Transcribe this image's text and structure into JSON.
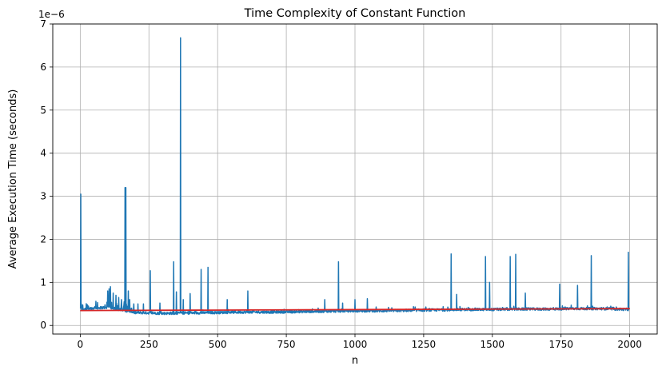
{
  "chart_data": {
    "type": "line",
    "title": "Time Complexity of Constant Function",
    "xlabel": "n",
    "ylabel": "Average Execution Time (seconds)",
    "y_offset_label": "1e−6",
    "xlim": [
      -100,
      2100
    ],
    "ylim": [
      -0.2,
      7
    ],
    "xticks": [
      0,
      250,
      500,
      750,
      1000,
      1250,
      1500,
      1750,
      2000
    ],
    "yticks": [
      0,
      1,
      2,
      3,
      4,
      5,
      6,
      7
    ],
    "grid": true,
    "legend": "none",
    "colors": {
      "measured": "#1f77b4",
      "fit": "#d62728"
    },
    "series": [
      {
        "color": "#1f77b4",
        "baseline": {
          "x": [
            1,
            100,
            200,
            300,
            400,
            500,
            600,
            700,
            800,
            900,
            1000,
            1100,
            1200,
            1300,
            1400,
            1500,
            1600,
            1700,
            1800,
            1900,
            2000
          ],
          "y": [
            0.38,
            0.42,
            0.3,
            0.28,
            0.29,
            0.3,
            0.31,
            0.31,
            0.32,
            0.33,
            0.34,
            0.34,
            0.35,
            0.36,
            0.37,
            0.37,
            0.38,
            0.38,
            0.39,
            0.39,
            0.37
          ]
        },
        "spikes": {
          "x": [
            2,
            4,
            100,
            105,
            110,
            120,
            130,
            140,
            150,
            160,
            163,
            166,
            175,
            180,
            195,
            210,
            230,
            255,
            290,
            340,
            350,
            365,
            375,
            400,
            440,
            465,
            535,
            610,
            890,
            940,
            955,
            1000,
            1045,
            1350,
            1370,
            1475,
            1490,
            1565,
            1585,
            1620,
            1745,
            1810,
            1860,
            1995
          ],
          "y": [
            3.05,
            0.5,
            0.8,
            0.85,
            0.9,
            0.75,
            0.7,
            0.65,
            0.6,
            0.55,
            3.2,
            3.2,
            0.8,
            0.6,
            0.5,
            0.5,
            0.5,
            1.27,
            0.52,
            1.48,
            0.78,
            6.68,
            0.6,
            0.74,
            1.3,
            1.35,
            0.6,
            0.8,
            0.6,
            1.48,
            0.52,
            0.6,
            0.62,
            1.66,
            0.72,
            1.6,
            1.0,
            1.6,
            1.65,
            0.75,
            0.96,
            0.93,
            1.62,
            1.7
          ]
        }
      },
      {
        "color": "#d62728",
        "x": [
          0,
          2000
        ],
        "y": [
          0.345,
          0.39
        ]
      }
    ]
  }
}
